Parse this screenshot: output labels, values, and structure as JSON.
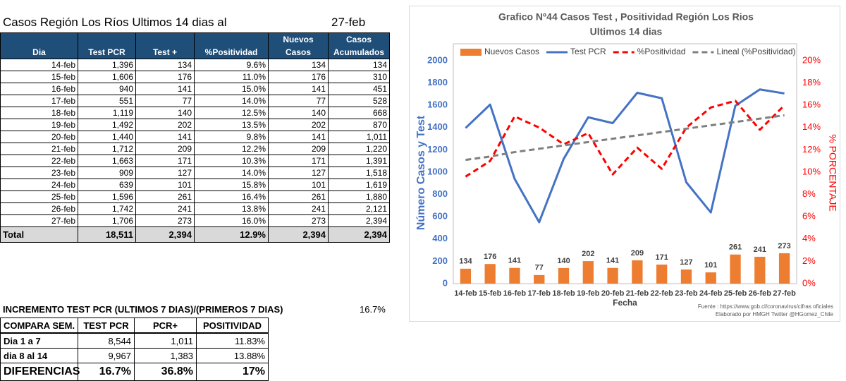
{
  "table": {
    "title": "Casos Región Los Ríos  Ultimos 14 dias al",
    "date": "27-feb",
    "columns": [
      "Dia",
      "Test PCR",
      "Test +",
      "%Positividad",
      "Nuevos Casos",
      "Casos Acumulados"
    ],
    "rows": [
      [
        "14-feb",
        "1,396",
        "134",
        "9.6%",
        "134",
        "134"
      ],
      [
        "15-feb",
        "1,606",
        "176",
        "11.0%",
        "176",
        "310"
      ],
      [
        "16-feb",
        "940",
        "141",
        "15.0%",
        "141",
        "451"
      ],
      [
        "17-feb",
        "551",
        "77",
        "14.0%",
        "77",
        "528"
      ],
      [
        "18-feb",
        "1,119",
        "140",
        "12.5%",
        "140",
        "668"
      ],
      [
        "19-feb",
        "1,492",
        "202",
        "13.5%",
        "202",
        "870"
      ],
      [
        "20-feb",
        "1,440",
        "141",
        "9.8%",
        "141",
        "1,011"
      ],
      [
        "21-feb",
        "1,712",
        "209",
        "12.2%",
        "209",
        "1,220"
      ],
      [
        "22-feb",
        "1,663",
        "171",
        "10.3%",
        "171",
        "1,391"
      ],
      [
        "23-feb",
        "909",
        "127",
        "14.0%",
        "127",
        "1,518"
      ],
      [
        "24-feb",
        "639",
        "101",
        "15.8%",
        "101",
        "1,619"
      ],
      [
        "25-feb",
        "1,596",
        "261",
        "16.4%",
        "261",
        "1,880"
      ],
      [
        "26-feb",
        "1,742",
        "241",
        "13.8%",
        "241",
        "2,121"
      ],
      [
        "27-feb",
        "1,706",
        "273",
        "16.0%",
        "273",
        "2,394"
      ]
    ],
    "total": [
      "Total",
      "18,511",
      "2,394",
      "12.9%",
      "2,394",
      "2,394"
    ]
  },
  "increment": {
    "label": "INCREMENTO TEST PCR (ULTIMOS 7 DIAS)/(PRIMEROS 7 DIAS)",
    "value": "16.7%"
  },
  "compare": {
    "columns": [
      "COMPARA SEM.",
      "TEST PCR",
      "PCR+",
      "POSITIVIDAD"
    ],
    "rows": [
      [
        "Dia 1 a 7",
        "8,544",
        "1,011",
        "11.83%"
      ],
      [
        "dia 8 al 14",
        "9,967",
        "1,383",
        "13.88%"
      ],
      [
        "DIFERENCIAS",
        "16.7%",
        "36.8%",
        "17%"
      ]
    ]
  },
  "chart_data": {
    "type": "bar",
    "title": "Grafico Nº44 Casos Test ,  Positividad Región Los Rios",
    "subtitle": "Ultimos 14 dias",
    "xlabel": "Fecha",
    "ylabel": "Número Casos y Test",
    "y2label": "% PORCENTAJE",
    "categories": [
      "14-feb",
      "15-feb",
      "16-feb",
      "17-feb",
      "18-feb",
      "19-feb",
      "20-feb",
      "21-feb",
      "22-feb",
      "23-feb",
      "24-feb",
      "25-feb",
      "26-feb",
      "27-feb"
    ],
    "ylim": [
      0,
      2000
    ],
    "yticks": [
      0,
      200,
      400,
      600,
      800,
      1000,
      1200,
      1400,
      1600,
      1800,
      2000
    ],
    "y2lim": [
      0,
      20
    ],
    "y2ticks": [
      {
        "value": 0,
        "label": "0%"
      },
      {
        "value": 2,
        "label": "2%"
      },
      {
        "value": 4,
        "label": "4%"
      },
      {
        "value": 6,
        "label": "6%"
      },
      {
        "value": 8,
        "label": "8%"
      },
      {
        "value": 10,
        "label": "10%"
      },
      {
        "value": 12,
        "label": "12%"
      },
      {
        "value": 14,
        "label": "14%"
      },
      {
        "value": 16,
        "label": "16%"
      },
      {
        "value": 18,
        "label": "18%"
      },
      {
        "value": 20,
        "label": "20%"
      }
    ],
    "legend": "top",
    "series": [
      {
        "name": "Nuevos Casos",
        "type": "bar",
        "color": "#ed7d31",
        "data_labels": true,
        "values": [
          134,
          176,
          141,
          77,
          140,
          202,
          141,
          209,
          171,
          127,
          101,
          261,
          241,
          273
        ]
      },
      {
        "name": "Test PCR",
        "type": "line",
        "color": "#4472c4",
        "values": [
          1396,
          1606,
          940,
          551,
          1119,
          1492,
          1440,
          1712,
          1663,
          909,
          639,
          1596,
          1742,
          1706
        ]
      },
      {
        "name": "%Positividad",
        "type": "line",
        "color": "#ff0000",
        "style": "dashed",
        "axis": "y2",
        "values": [
          9.6,
          11.0,
          15.0,
          14.0,
          12.5,
          13.5,
          9.8,
          12.2,
          10.3,
          14.0,
          15.8,
          16.4,
          13.8,
          16.0
        ]
      },
      {
        "name": "Lineal (%Positividad)",
        "type": "line",
        "color": "#7f7f7f",
        "style": "dashed",
        "axis": "y2",
        "values": [
          11.1,
          11.4,
          11.8,
          12.1,
          12.4,
          12.7,
          13.0,
          13.3,
          13.6,
          13.9,
          14.2,
          14.5,
          14.8,
          15.1
        ]
      }
    ],
    "source": [
      "Fuente  : https://www.gob.cl/coronavirus/cifras oficiales",
      "Elaborado por HMGH  Twitter  @HGomez_Chile"
    ]
  }
}
